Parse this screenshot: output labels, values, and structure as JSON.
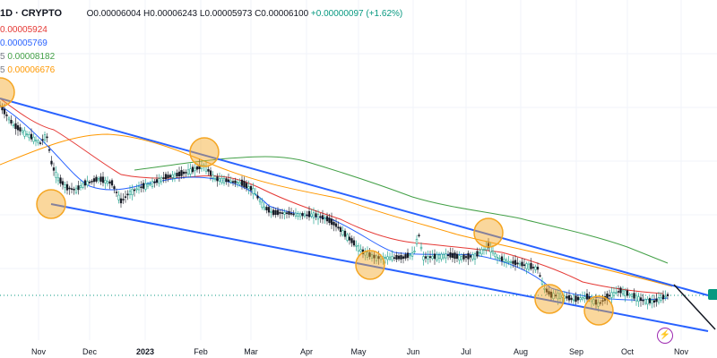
{
  "header": {
    "symbol": "1D · CRYPTO",
    "open": "O0.00006004",
    "high": "H0.00006243",
    "low": "L0.00005973",
    "close": "C0.00006100",
    "change": "+0.00000097 (+1.62%)"
  },
  "indicators": [
    {
      "prefix": "",
      "value": "0.00005924",
      "color": "#e53935"
    },
    {
      "prefix": "",
      "value": "0.00005769",
      "color": "#2962ff"
    },
    {
      "prefix": "5",
      "value": "0.00008182",
      "color": "#43a047"
    },
    {
      "prefix": "5",
      "value": "0.00006676",
      "color": "#ff9800"
    }
  ],
  "chart_data": {
    "type": "candlestick",
    "xlabels": [
      "Nov",
      "Dec",
      "2023",
      "Feb",
      "Mar",
      "Apr",
      "May",
      "Jun",
      "Jul",
      "Aug",
      "Sep",
      "Oct",
      "Nov"
    ],
    "colors": {
      "up": "#089981",
      "down": "#131722",
      "channel": "#2962ff",
      "circle": "#f5a623"
    },
    "annotations": [
      "descending channel",
      "touch-point circles"
    ]
  }
}
